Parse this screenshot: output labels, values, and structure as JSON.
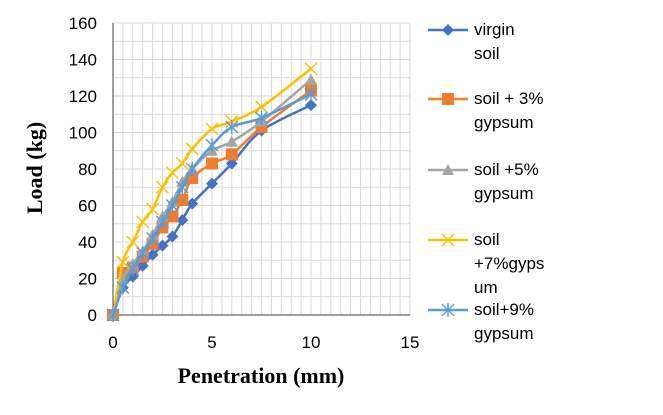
{
  "chart_data": {
    "type": "line",
    "title": "",
    "xlabel": "Penetration (mm)",
    "ylabel": "Load (kg)",
    "xlim": [
      0,
      15
    ],
    "ylim": [
      0,
      160
    ],
    "x_ticks": [
      0,
      5,
      10,
      15
    ],
    "y_ticks": [
      0,
      20,
      40,
      60,
      80,
      100,
      120,
      140,
      160
    ],
    "grid": true,
    "legend_position": "right",
    "x": [
      0,
      0.5,
      1,
      1.5,
      2,
      2.5,
      3,
      3.5,
      4,
      5,
      6,
      7.5,
      10
    ],
    "series": [
      {
        "name": "virgin soil",
        "legend_lines": [
          "virgin",
          "soil"
        ],
        "color": "#4472C4",
        "marker": "diamond",
        "values": [
          0,
          15,
          21,
          27,
          33,
          38,
          43,
          52,
          61,
          72,
          83,
          101,
          115
        ]
      },
      {
        "name": "soil + 3% gypsum",
        "legend_lines": [
          "soil + 3%",
          "gypsum"
        ],
        "color": "#ED7D31",
        "marker": "square",
        "values": [
          0,
          23,
          26,
          32,
          39,
          48,
          54,
          63,
          75,
          83,
          88,
          103,
          123
        ]
      },
      {
        "name": "soil +5% gypsum",
        "legend_lines": [
          "soil +5%",
          "gypsum"
        ],
        "color": "#A5A5A5",
        "marker": "triangle",
        "values": [
          0,
          20,
          28,
          35,
          44,
          54,
          62,
          73,
          80,
          90,
          95,
          106,
          129
        ]
      },
      {
        "name": "soil +7%gypsum",
        "legend_lines": [
          "soil",
          "+7%gyps",
          "um"
        ],
        "color": "#FFC000",
        "marker": "x",
        "values": [
          0,
          29,
          40,
          51,
          58,
          70,
          78,
          83,
          91,
          102,
          106,
          114,
          135
        ]
      },
      {
        "name": "soil+9% gypsum",
        "legend_lines": [
          "soil+9%",
          "gypsum"
        ],
        "color": "#5B9BD5",
        "marker": "asterisk",
        "values": [
          0,
          15,
          25,
          34,
          42,
          51,
          60,
          70,
          80,
          93,
          103,
          108,
          121
        ]
      }
    ]
  }
}
